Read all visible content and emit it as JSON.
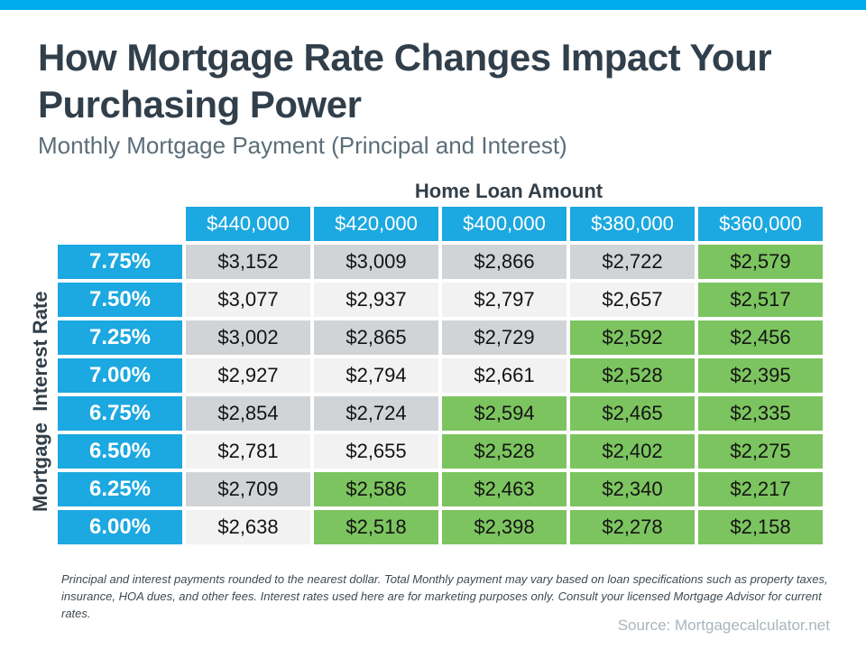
{
  "topbar": {
    "color": "#00ACEC"
  },
  "header": {
    "title": "How Mortgage Rate Changes Impact Your Purchasing Power",
    "subtitle": "Monthly Mortgage Payment (Principal and Interest)"
  },
  "table": {
    "column_axis_title": "Home Loan Amount",
    "row_axis_title": "Mortgage  Interest Rate",
    "columns": [
      "$440,000",
      "$420,000",
      "$400,000",
      "$380,000",
      "$360,000"
    ],
    "rows": [
      {
        "rate": "7.75%",
        "values": [
          "$3,152",
          "$3,009",
          "$2,866",
          "$2,722",
          "$2,579"
        ]
      },
      {
        "rate": "7.50%",
        "values": [
          "$3,077",
          "$2,937",
          "$2,797",
          "$2,657",
          "$2,517"
        ]
      },
      {
        "rate": "7.25%",
        "values": [
          "$3,002",
          "$2,865",
          "$2,729",
          "$2,592",
          "$2,456"
        ]
      },
      {
        "rate": "7.00%",
        "values": [
          "$2,927",
          "$2,794",
          "$2,661",
          "$2,528",
          "$2,395"
        ]
      },
      {
        "rate": "6.75%",
        "values": [
          "$2,854",
          "$2,724",
          "$2,594",
          "$2,465",
          "$2,335"
        ]
      },
      {
        "rate": "6.50%",
        "values": [
          "$2,781",
          "$2,655",
          "$2,528",
          "$2,402",
          "$2,275"
        ]
      },
      {
        "rate": "6.25%",
        "values": [
          "$2,709",
          "$2,586",
          "$2,463",
          "$2,340",
          "$2,217"
        ]
      },
      {
        "rate": "6.00%",
        "values": [
          "$2,638",
          "$2,518",
          "$2,398",
          "$2,278",
          "$2,158"
        ]
      }
    ],
    "highlight_threshold": 2600,
    "colors": {
      "header_blue": "#1CA8E0",
      "highlight_green": "#7CC45F",
      "row_gray": "#D1D4D6",
      "row_light": "#F2F2F3"
    }
  },
  "footnote": "Principal and interest payments rounded to the nearest dollar. Total Monthly payment may vary based on loan specifications such as property taxes, insurance, HOA dues, and other fees. Interest rates used here are for marketing purposes only. Consult your licensed Mortgage Advisor for current rates.",
  "source": "Source: Mortgagecalculator.net",
  "chart_data": {
    "type": "table",
    "title": "How Mortgage Rate Changes Impact Your Purchasing Power",
    "subtitle": "Monthly Mortgage Payment (Principal and Interest)",
    "column_axis_label": "Home Loan Amount",
    "row_axis_label": "Mortgage Interest Rate",
    "columns": [
      440000,
      420000,
      400000,
      380000,
      360000
    ],
    "rows": [
      7.75,
      7.5,
      7.25,
      7.0,
      6.75,
      6.5,
      6.25,
      6.0
    ],
    "values": [
      [
        3152,
        3009,
        2866,
        2722,
        2579
      ],
      [
        3077,
        2937,
        2797,
        2657,
        2517
      ],
      [
        3002,
        2865,
        2729,
        2592,
        2456
      ],
      [
        2927,
        2794,
        2661,
        2528,
        2395
      ],
      [
        2854,
        2724,
        2594,
        2465,
        2335
      ],
      [
        2781,
        2655,
        2528,
        2402,
        2275
      ],
      [
        2709,
        2586,
        2463,
        2340,
        2217
      ],
      [
        2638,
        2518,
        2398,
        2278,
        2158
      ]
    ],
    "highlight": {
      "color": "#7CC45F",
      "rule": "payment < 2600"
    }
  }
}
